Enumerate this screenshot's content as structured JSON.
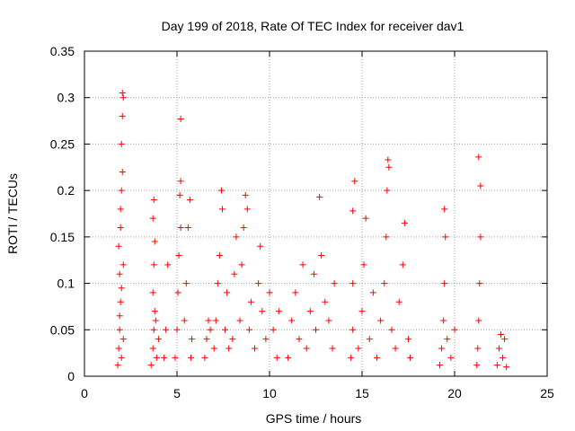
{
  "chart_data": {
    "type": "scatter",
    "title": "Day 199 of 2018, Rate Of TEC Index for receiver dav1",
    "xlabel": "GPS time / hours",
    "ylabel": "ROTI / TECUs",
    "xlim": [
      0,
      25
    ],
    "ylim": [
      0,
      0.35
    ],
    "xticks": [
      0,
      5,
      10,
      15,
      20,
      25
    ],
    "yticks": [
      0,
      0.05,
      0.1,
      0.15,
      0.2,
      0.25,
      0.3,
      0.35
    ],
    "xtick_labels": [
      "0",
      "5",
      "10",
      "15",
      "20",
      "25"
    ],
    "ytick_labels": [
      "0",
      "0.05",
      "0.1",
      "0.15",
      "0.2",
      "0.25",
      "0.3",
      "0.35"
    ],
    "grid": true,
    "marker": "+",
    "color": "#ff0000",
    "series": [
      {
        "points": [
          [
            1.8,
            0.012
          ],
          [
            1.85,
            0.03
          ],
          [
            1.9,
            0.05
          ],
          [
            1.95,
            0.08
          ],
          [
            1.9,
            0.11
          ],
          [
            1.85,
            0.14
          ],
          [
            1.95,
            0.16
          ],
          [
            2.0,
            0.2
          ],
          [
            2.05,
            0.22
          ],
          [
            2.0,
            0.25
          ],
          [
            2.05,
            0.28
          ],
          [
            2.1,
            0.3
          ],
          [
            2.05,
            0.305
          ],
          [
            1.95,
            0.18
          ],
          [
            2.1,
            0.12
          ],
          [
            2.0,
            0.02
          ],
          [
            2.1,
            0.04
          ],
          [
            1.9,
            0.065
          ],
          [
            2.0,
            0.095
          ],
          [
            3.6,
            0.012
          ],
          [
            3.7,
            0.03
          ],
          [
            3.75,
            0.05
          ],
          [
            3.8,
            0.07
          ],
          [
            3.7,
            0.09
          ],
          [
            3.75,
            0.12
          ],
          [
            3.8,
            0.145
          ],
          [
            3.7,
            0.17
          ],
          [
            3.75,
            0.19
          ],
          [
            3.85,
            0.06
          ],
          [
            3.9,
            0.02
          ],
          [
            4.0,
            0.04
          ],
          [
            4.3,
            0.02
          ],
          [
            4.4,
            0.05
          ],
          [
            4.5,
            0.12
          ],
          [
            4.9,
            0.02
          ],
          [
            5.0,
            0.05
          ],
          [
            5.05,
            0.09
          ],
          [
            5.1,
            0.13
          ],
          [
            5.2,
            0.16
          ],
          [
            5.15,
            0.195
          ],
          [
            5.2,
            0.21
          ],
          [
            5.2,
            0.277
          ],
          [
            5.4,
            0.06
          ],
          [
            5.5,
            0.1
          ],
          [
            5.6,
            0.16
          ],
          [
            5.7,
            0.19
          ],
          [
            5.8,
            0.04
          ],
          [
            5.75,
            0.02
          ],
          [
            6.5,
            0.02
          ],
          [
            6.6,
            0.04
          ],
          [
            6.7,
            0.06
          ],
          [
            6.8,
            0.05
          ],
          [
            7.0,
            0.03
          ],
          [
            7.1,
            0.06
          ],
          [
            7.2,
            0.1
          ],
          [
            7.3,
            0.13
          ],
          [
            7.4,
            0.2
          ],
          [
            7.45,
            0.18
          ],
          [
            7.6,
            0.05
          ],
          [
            7.7,
            0.09
          ],
          [
            7.8,
            0.03
          ],
          [
            8.0,
            0.04
          ],
          [
            8.1,
            0.11
          ],
          [
            8.2,
            0.15
          ],
          [
            8.4,
            0.06
          ],
          [
            8.5,
            0.12
          ],
          [
            8.6,
            0.16
          ],
          [
            8.7,
            0.195
          ],
          [
            8.8,
            0.18
          ],
          [
            8.9,
            0.05
          ],
          [
            9.0,
            0.08
          ],
          [
            9.2,
            0.03
          ],
          [
            9.4,
            0.1
          ],
          [
            9.5,
            0.14
          ],
          [
            9.6,
            0.07
          ],
          [
            9.8,
            0.04
          ],
          [
            10.0,
            0.09
          ],
          [
            10.2,
            0.05
          ],
          [
            10.4,
            0.02
          ],
          [
            10.5,
            0.07
          ],
          [
            11.0,
            0.02
          ],
          [
            11.2,
            0.06
          ],
          [
            11.4,
            0.09
          ],
          [
            11.6,
            0.04
          ],
          [
            11.8,
            0.12
          ],
          [
            12.0,
            0.03
          ],
          [
            12.2,
            0.07
          ],
          [
            12.4,
            0.11
          ],
          [
            12.5,
            0.05
          ],
          [
            12.7,
            0.193
          ],
          [
            12.8,
            0.13
          ],
          [
            13.0,
            0.08
          ],
          [
            13.2,
            0.06
          ],
          [
            13.4,
            0.03
          ],
          [
            13.5,
            0.1
          ],
          [
            14.4,
            0.02
          ],
          [
            14.5,
            0.05
          ],
          [
            14.5,
            0.1
          ],
          [
            14.5,
            0.178
          ],
          [
            14.6,
            0.21
          ],
          [
            14.8,
            0.03
          ],
          [
            15.0,
            0.07
          ],
          [
            15.1,
            0.12
          ],
          [
            15.2,
            0.17
          ],
          [
            15.4,
            0.04
          ],
          [
            15.6,
            0.09
          ],
          [
            15.8,
            0.02
          ],
          [
            16.0,
            0.06
          ],
          [
            16.2,
            0.1
          ],
          [
            16.3,
            0.15
          ],
          [
            16.35,
            0.2
          ],
          [
            16.4,
            0.233
          ],
          [
            16.45,
            0.225
          ],
          [
            16.6,
            0.05
          ],
          [
            16.8,
            0.03
          ],
          [
            17.0,
            0.08
          ],
          [
            17.2,
            0.12
          ],
          [
            17.3,
            0.165
          ],
          [
            17.5,
            0.04
          ],
          [
            17.6,
            0.02
          ],
          [
            19.2,
            0.012
          ],
          [
            19.3,
            0.03
          ],
          [
            19.4,
            0.06
          ],
          [
            19.45,
            0.1
          ],
          [
            19.5,
            0.15
          ],
          [
            19.45,
            0.18
          ],
          [
            19.6,
            0.04
          ],
          [
            19.8,
            0.02
          ],
          [
            20.0,
            0.05
          ],
          [
            21.2,
            0.012
          ],
          [
            21.25,
            0.03
          ],
          [
            21.3,
            0.06
          ],
          [
            21.35,
            0.1
          ],
          [
            21.4,
            0.15
          ],
          [
            21.4,
            0.205
          ],
          [
            21.3,
            0.236
          ],
          [
            22.3,
            0.012
          ],
          [
            22.4,
            0.03
          ],
          [
            22.5,
            0.045
          ],
          [
            22.6,
            0.02
          ],
          [
            22.7,
            0.04
          ],
          [
            22.8,
            0.01
          ]
        ]
      }
    ]
  }
}
